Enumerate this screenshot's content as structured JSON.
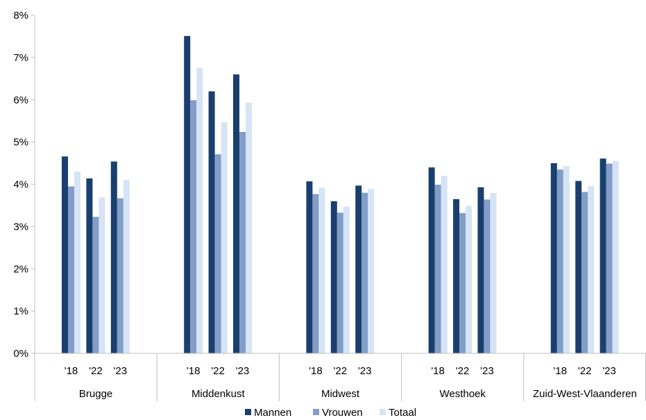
{
  "chart_data": {
    "type": "bar",
    "groups": [
      "Brugge",
      "Middenkust",
      "Midwest",
      "Westhoek",
      "Zuid-West-Vlaanderen"
    ],
    "subcategories": [
      "'18",
      "'22",
      "'23"
    ],
    "series": [
      {
        "name": "Mannen",
        "color": "#1a3f6f",
        "values": [
          [
            4.66,
            4.14,
            4.54
          ],
          [
            7.51,
            6.2,
            6.6
          ],
          [
            4.07,
            3.6,
            3.97
          ],
          [
            4.4,
            3.65,
            3.93
          ],
          [
            4.5,
            4.08,
            4.61
          ]
        ]
      },
      {
        "name": "Vrouwen",
        "color": "#819dc8",
        "values": [
          [
            3.95,
            3.23,
            3.67
          ],
          [
            5.99,
            4.71,
            5.24
          ],
          [
            3.77,
            3.33,
            3.8
          ],
          [
            3.99,
            3.32,
            3.64
          ],
          [
            4.35,
            3.82,
            4.49
          ]
        ]
      },
      {
        "name": "Totaal",
        "color": "#d6e4f5",
        "values": [
          [
            4.3,
            3.69,
            4.1
          ],
          [
            6.76,
            5.47,
            5.93
          ],
          [
            3.92,
            3.47,
            3.89
          ],
          [
            4.2,
            3.49,
            3.79
          ],
          [
            4.43,
            3.96,
            4.55
          ]
        ]
      }
    ],
    "y_ticks": [
      "0%",
      "1%",
      "2%",
      "3%",
      "4%",
      "5%",
      "6%",
      "7%",
      "8%"
    ],
    "ylim": [
      0,
      8
    ],
    "grid": false,
    "legend_position": "bottom"
  }
}
